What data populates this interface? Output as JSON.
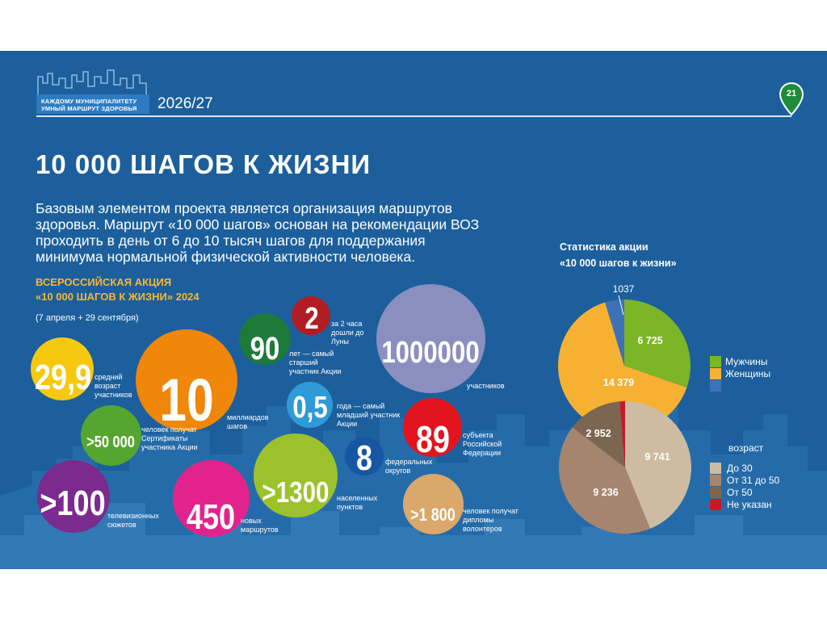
{
  "header": {
    "line1": "КАЖДОМУ МУНИЦИПАЛИТЕТУ",
    "line2": "УМНЫЙ МАРШРУТ ЗДОРОВЬЯ",
    "year": "2026/27",
    "page_number": "21"
  },
  "title": "10 000 ШАГОВ К ЖИЗНИ",
  "intro": "Базовым элементом проекта является организация маршрутов здоровья. Маршрут «10 000 шагов» основан на рекомендации ВОЗ проходить в день от 6 до 10 тысяч шагов для поддержания минимума нормальной физической активности человека.",
  "action": {
    "line1": "ВСЕРОССИЙСКАЯ АКЦИЯ",
    "line2": "«10 000 ШАГОВ К ЖИЗНИ» 2024",
    "dates": "(7 апреля + 29 сентября)"
  },
  "bubbles": [
    {
      "id": "age",
      "value": "29,9",
      "label": "средний возраст участников",
      "color": "#f6c90e"
    },
    {
      "id": "steps",
      "value": "10",
      "label": "миллиардов шагов",
      "color": "#f0860a"
    },
    {
      "id": "oldest",
      "value": "90",
      "label": "лет — самый старший участник Акции",
      "color": "#1d7a3a"
    },
    {
      "id": "moon",
      "value": "2",
      "label": "за 2 часа дошли до Луны",
      "color": "#b01e23"
    },
    {
      "id": "participants",
      "value": "1000000",
      "label": "участников",
      "color": "#8a8fbf"
    },
    {
      "id": "youngest",
      "value": "0,5",
      "label": "года — самый младший участник Акции",
      "color": "#2f9ad8"
    },
    {
      "id": "certs",
      "value": ">50 000",
      "label": "человек получат Сертификаты участника Акции",
      "color": "#55a630"
    },
    {
      "id": "subjects",
      "value": "89",
      "label": "субъекта Российской Федерации",
      "color": "#e3141d"
    },
    {
      "id": "districts",
      "value": "8",
      "label": "федеральных округов",
      "color": "#1656a3"
    },
    {
      "id": "settlements",
      "value": ">1300",
      "label": "населенных пунктов",
      "color": "#9bc22a"
    },
    {
      "id": "tv",
      "value": ">100",
      "label": "телевизионных сюжетов",
      "color": "#7b2a8e"
    },
    {
      "id": "routes",
      "value": "450",
      "label": "новых маршрутов",
      "color": "#e3238d"
    },
    {
      "id": "volunteers",
      "value": ">1 800",
      "label": "человек получат дипломы волонтеров",
      "color": "#d9a86a"
    }
  ],
  "stats": {
    "title_line1": "Статистика акции",
    "title_line2": "«10 000 шагов к жизни»"
  },
  "chart_data": [
    {
      "type": "pie",
      "title": "",
      "series": [
        {
          "name": "Мужчины",
          "value": 6725,
          "label": "6 725",
          "color": "#7cb526"
        },
        {
          "name": "Женщины",
          "value": 14379,
          "label": "14 379",
          "color": "#f6b132"
        },
        {
          "name": "",
          "value": 1037,
          "label": "1037",
          "color": "#3d71b8"
        }
      ]
    },
    {
      "type": "pie",
      "title": "возраст",
      "series": [
        {
          "name": "До 30",
          "value": 9741,
          "label": "9 741",
          "color": "#cdbca2"
        },
        {
          "name": "От 31 до 50",
          "value": 9236,
          "label": "9 236",
          "color": "#a6856f"
        },
        {
          "name": "От 50",
          "value": 2952,
          "label": "2 952",
          "color": "#7d6651"
        },
        {
          "name": "Не указан",
          "value": 300,
          "label": "",
          "color": "#c6182b"
        }
      ]
    }
  ]
}
